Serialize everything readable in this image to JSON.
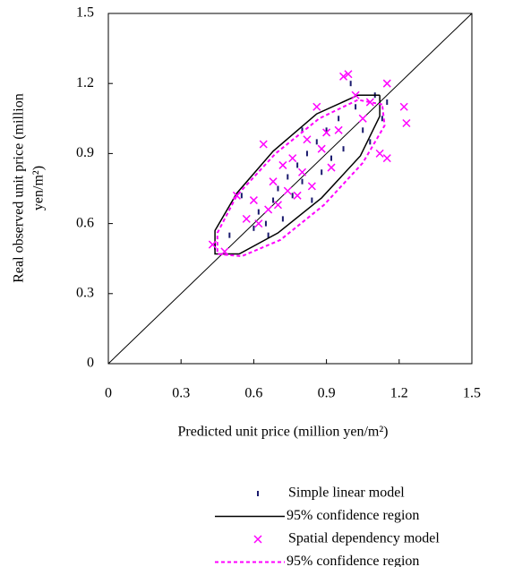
{
  "chart_data": {
    "type": "scatter",
    "xlabel": "Predicted unit price (million yen/m²)",
    "ylabel": [
      "Real observed unit price (million",
      "yen/m²)"
    ],
    "xlim": [
      0,
      1.5
    ],
    "ylim": [
      0,
      1.5
    ],
    "xticks": [
      0,
      0.3,
      0.6,
      0.9,
      1.2,
      1.5
    ],
    "yticks": [
      0,
      0.3,
      0.6,
      0.9,
      1.2,
      1.5
    ],
    "series": [
      {
        "name": "Simple linear model",
        "color": "#1a1a6e",
        "marker": "dash",
        "x": [
          0.44,
          0.5,
          0.55,
          0.6,
          0.62,
          0.65,
          0.68,
          0.7,
          0.72,
          0.74,
          0.76,
          0.78,
          0.8,
          0.82,
          0.84,
          0.86,
          0.88,
          0.9,
          0.92,
          0.95,
          0.97,
          1.0,
          1.02,
          1.05,
          1.08,
          1.1,
          1.13,
          1.15,
          0.8,
          0.66
        ],
        "values": [
          0.5,
          0.55,
          0.72,
          0.58,
          0.65,
          0.6,
          0.7,
          0.75,
          0.62,
          0.8,
          0.72,
          0.85,
          0.78,
          0.9,
          0.7,
          0.95,
          0.82,
          1.0,
          0.88,
          1.05,
          0.92,
          1.2,
          1.1,
          1.0,
          0.95,
          1.15,
          1.05,
          1.12,
          1.0,
          0.55
        ]
      },
      {
        "name": "95% confidence region",
        "color": "#000000",
        "marker": "line-solid",
        "x": [
          1.12,
          1.03,
          0.86,
          0.68,
          0.53,
          0.44,
          0.44,
          0.54,
          0.7,
          0.88,
          1.04,
          1.12,
          1.12
        ],
        "values": [
          1.15,
          1.15,
          1.07,
          0.91,
          0.73,
          0.57,
          0.47,
          0.47,
          0.56,
          0.71,
          0.89,
          1.06,
          1.15
        ]
      },
      {
        "name": "Spatial dependency model",
        "color": "#ff00ff",
        "marker": "cross",
        "x": [
          0.43,
          0.48,
          0.53,
          0.57,
          0.6,
          0.62,
          0.64,
          0.66,
          0.68,
          0.7,
          0.72,
          0.74,
          0.76,
          0.78,
          0.8,
          0.82,
          0.84,
          0.86,
          0.88,
          0.9,
          0.92,
          0.95,
          0.97,
          0.99,
          1.02,
          1.05,
          1.08,
          1.12,
          1.15,
          1.22,
          1.23,
          1.15
        ],
        "values": [
          0.51,
          0.48,
          0.72,
          0.62,
          0.7,
          0.6,
          0.94,
          0.66,
          0.78,
          0.68,
          0.85,
          0.74,
          0.88,
          0.72,
          0.82,
          0.96,
          0.76,
          1.1,
          0.92,
          0.99,
          0.84,
          1.0,
          1.23,
          1.24,
          1.15,
          1.05,
          1.12,
          0.9,
          1.2,
          1.1,
          1.03,
          0.88
        ]
      },
      {
        "name": "95% confidence region",
        "color": "#ff00ff",
        "marker": "line-dashed",
        "x": [
          1.13,
          1.03,
          0.87,
          0.69,
          0.53,
          0.45,
          0.45,
          0.55,
          0.71,
          0.89,
          1.05,
          1.14,
          1.13
        ],
        "values": [
          1.11,
          1.13,
          1.05,
          0.9,
          0.72,
          0.56,
          0.47,
          0.46,
          0.53,
          0.68,
          0.86,
          1.02,
          1.11
        ]
      }
    ]
  }
}
